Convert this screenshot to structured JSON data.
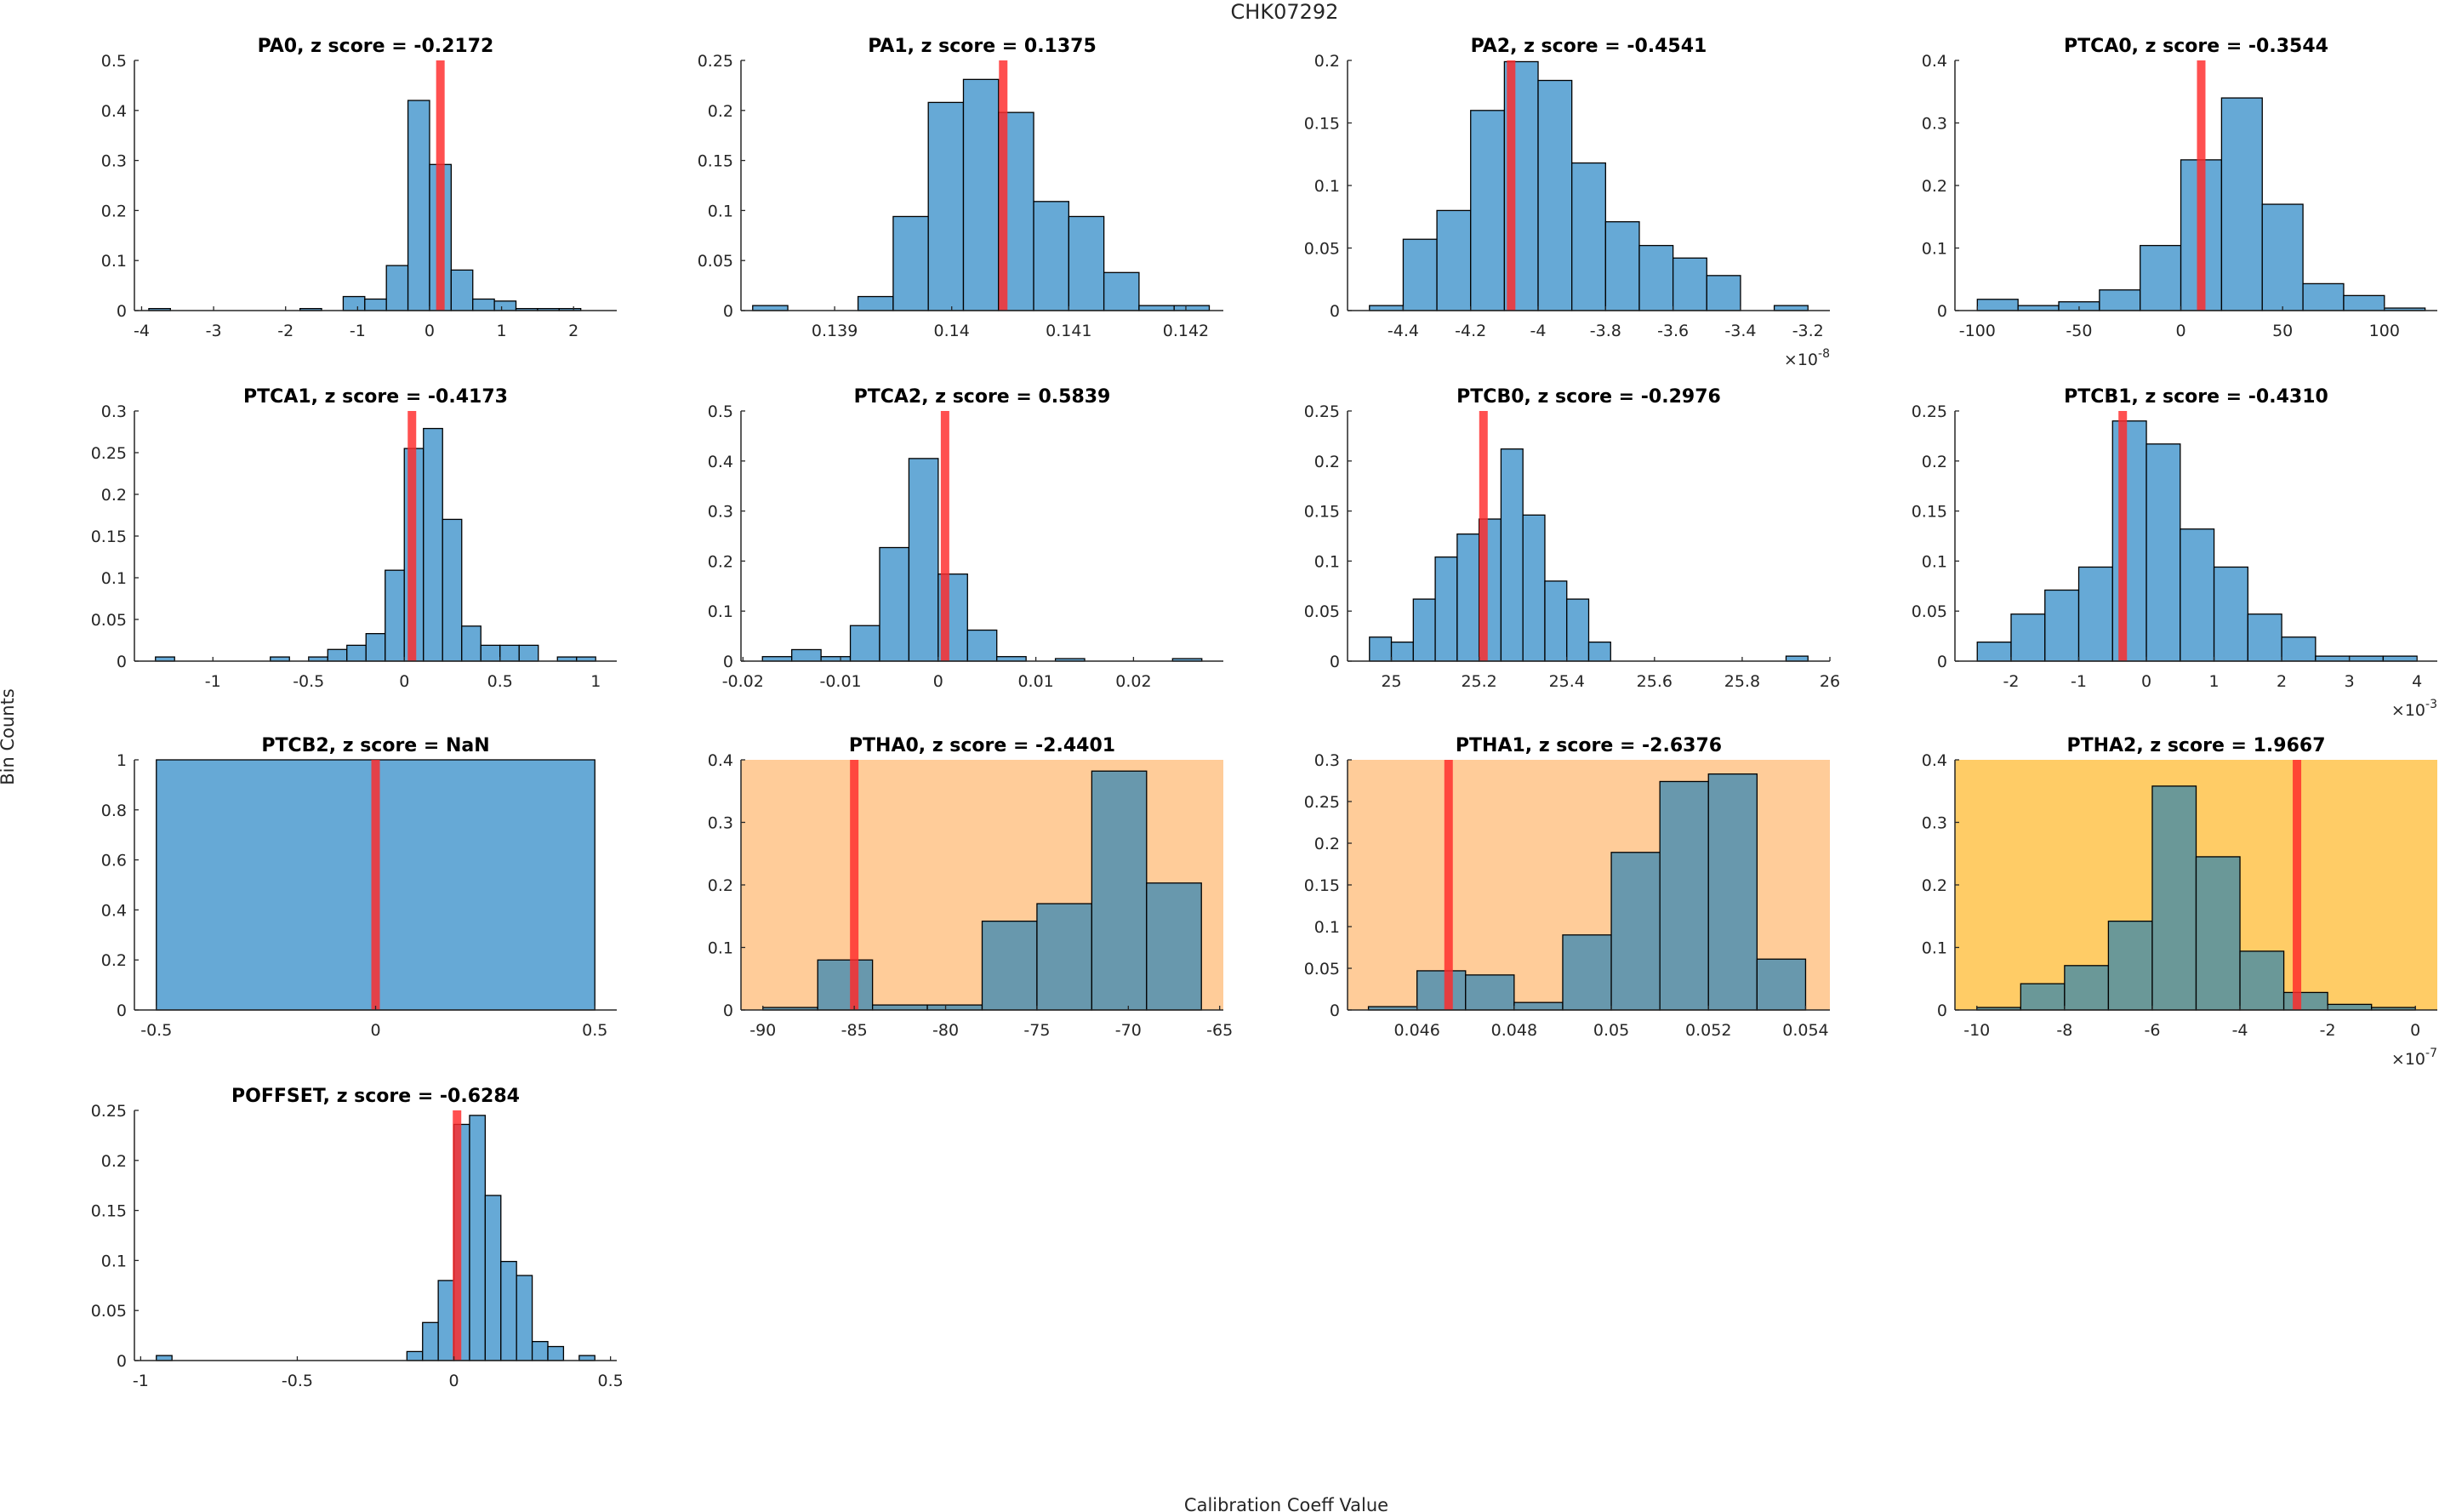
{
  "figure": {
    "suptitle": "CHK07292",
    "xlabel": "Calibration Coeff Value",
    "ylabel": "Bin Counts",
    "colors": {
      "bar": "#66a9d6",
      "bar_on_bg": "#6898ad",
      "bar_on_bg_yellow": "#6a9898",
      "bar_edge": "#000000",
      "marker": "#ff2a2a",
      "bg_warning": "#ffcc99",
      "bg_alert": "#ffcc66"
    }
  },
  "chart_data": [
    {
      "type": "bar",
      "name": "PA0",
      "title": "PA0, z score = -0.2172",
      "z_score": -0.2172,
      "bin_start": -3.9,
      "bin_width": 0.3,
      "values": [
        0.004,
        0,
        0,
        0,
        0,
        0,
        0,
        0.004,
        0,
        0.028,
        0.023,
        0.09,
        0.42,
        0.292,
        0.081,
        0.023,
        0.019,
        0.004,
        0.004,
        0.004
      ],
      "marker_x": 0.15,
      "xlim": [
        -4.1,
        2.6
      ],
      "ylim": [
        0,
        0.5
      ],
      "xticks": [
        -4,
        -3,
        -2,
        -1,
        0,
        1,
        2
      ],
      "xticklabels": [
        "-4",
        "-3",
        "-2",
        "-1",
        "0",
        "1",
        "2"
      ],
      "yticks": [
        0,
        0.1,
        0.2,
        0.3,
        0.4,
        0.5
      ],
      "yticklabels": [
        "0",
        "0.1",
        "0.2",
        "0.3",
        "0.4",
        "0.5"
      ],
      "exponent": "",
      "background": "none"
    },
    {
      "type": "bar",
      "name": "PA1",
      "title": "PA1, z score = 0.1375",
      "z_score": 0.1375,
      "bin_start": 0.1383,
      "bin_width": 0.0003,
      "values": [
        0.005,
        0,
        0,
        0.014,
        0.094,
        0.208,
        0.231,
        0.198,
        0.109,
        0.094,
        0.038,
        0.005,
        0.005
      ],
      "marker_x": 0.14044,
      "xlim": [
        0.1382,
        0.14232
      ],
      "ylim": [
        0,
        0.25
      ],
      "xticks": [
        0.139,
        0.14,
        0.141,
        0.142
      ],
      "xticklabels": [
        "0.139",
        "0.14",
        "0.141",
        "0.142"
      ],
      "yticks": [
        0,
        0.05,
        0.1,
        0.15,
        0.2,
        0.25
      ],
      "yticklabels": [
        "0",
        "0.05",
        "0.1",
        "0.15",
        "0.2",
        "0.25"
      ],
      "exponent": "",
      "background": "none"
    },
    {
      "type": "bar",
      "name": "PA2",
      "title": "PA2, z score = -0.4541",
      "z_score": -0.4541,
      "bin_start": -4.5,
      "bin_width": 0.1,
      "values": [
        0.004,
        0.057,
        0.08,
        0.16,
        0.199,
        0.184,
        0.118,
        0.071,
        0.052,
        0.042,
        0.028,
        0,
        0.004
      ],
      "marker_x": -4.08,
      "xlim": [
        -4.565,
        -3.135
      ],
      "ylim": [
        0,
        0.2
      ],
      "xticks": [
        -4.4,
        -4.2,
        -4,
        -3.8,
        -3.6,
        -3.4,
        -3.2
      ],
      "xticklabels": [
        "-4.4",
        "-4.2",
        "-4",
        "-3.8",
        "-3.6",
        "-3.4",
        "-3.2"
      ],
      "yticks": [
        0,
        0.05,
        0.1,
        0.15,
        0.2
      ],
      "yticklabels": [
        "0",
        "0.05",
        "0.1",
        "0.15",
        "0.2"
      ],
      "exponent": "-8",
      "background": "none"
    },
    {
      "type": "bar",
      "name": "PTCA0",
      "title": "PTCA0, z score = -0.3544",
      "z_score": -0.3544,
      "bin_start": -100,
      "bin_width": 20,
      "values": [
        0.018,
        0.008,
        0.014,
        0.033,
        0.104,
        0.241,
        0.34,
        0.17,
        0.043,
        0.024,
        0.004
      ],
      "marker_x": 10,
      "xlim": [
        -111,
        126
      ],
      "ylim": [
        0,
        0.4
      ],
      "xticks": [
        -100,
        -50,
        0,
        50,
        100
      ],
      "xticklabels": [
        "-100",
        "-50",
        "0",
        "50",
        "100"
      ],
      "yticks": [
        0,
        0.1,
        0.2,
        0.3,
        0.4
      ],
      "yticklabels": [
        "0",
        "0.1",
        "0.2",
        "0.3",
        "0.4"
      ],
      "exponent": "",
      "background": "none"
    },
    {
      "type": "bar",
      "name": "PTCA1",
      "title": "PTCA1, z score = -0.4173",
      "z_score": -0.4173,
      "bin_start": -1.3,
      "bin_width": 0.1,
      "values": [
        0.005,
        0,
        0,
        0,
        0,
        0,
        0.005,
        0,
        0.005,
        0.014,
        0.019,
        0.033,
        0.109,
        0.255,
        0.279,
        0.17,
        0.042,
        0.019,
        0.019,
        0.019,
        0,
        0.005,
        0.005
      ],
      "marker_x": 0.04,
      "xlim": [
        -1.41,
        1.11
      ],
      "ylim": [
        0,
        0.3
      ],
      "xticks": [
        -1,
        -0.5,
        0,
        0.5,
        1
      ],
      "xticklabels": [
        "-1",
        "-0.5",
        "0",
        "0.5",
        "1"
      ],
      "yticks": [
        0,
        0.05,
        0.1,
        0.15,
        0.2,
        0.25,
        0.3
      ],
      "yticklabels": [
        "0",
        "0.05",
        "0.1",
        "0.15",
        "0.2",
        "0.25",
        "0.3"
      ],
      "exponent": "",
      "background": "none"
    },
    {
      "type": "bar",
      "name": "PTCA2",
      "title": "PTCA2, z score = 0.5839",
      "z_score": 0.5839,
      "bin_start": -0.018,
      "bin_width": 0.003,
      "values": [
        0.009,
        0.023,
        0.009,
        0.071,
        0.227,
        0.405,
        0.174,
        0.062,
        0.009,
        0,
        0.005,
        0,
        0,
        0,
        0.005
      ],
      "marker_x": 0.0007,
      "xlim": [
        -0.0202,
        0.0292
      ],
      "ylim": [
        0,
        0.5
      ],
      "xticks": [
        -0.02,
        -0.01,
        0,
        0.01,
        0.02
      ],
      "xticklabels": [
        "-0.02",
        "-0.01",
        "0",
        "0.01",
        "0.02"
      ],
      "yticks": [
        0,
        0.1,
        0.2,
        0.3,
        0.4,
        0.5
      ],
      "yticklabels": [
        "0",
        "0.1",
        "0.2",
        "0.3",
        "0.4",
        "0.5"
      ],
      "exponent": "",
      "background": "none"
    },
    {
      "type": "bar",
      "name": "PTCB0",
      "title": "PTCB0, z score = -0.2976",
      "z_score": -0.2976,
      "bin_start": 24.95,
      "bin_width": 0.05,
      "values": [
        0.024,
        0.019,
        0.062,
        0.104,
        0.127,
        0.142,
        0.212,
        0.146,
        0.08,
        0.062,
        0.019,
        0,
        0,
        0,
        0,
        0,
        0,
        0,
        0,
        0.005
      ],
      "marker_x": 25.21,
      "xlim": [
        24.9,
        26.0
      ],
      "ylim": [
        0,
        0.25
      ],
      "xticks": [
        25,
        25.2,
        25.4,
        25.6,
        25.8,
        26
      ],
      "xticklabels": [
        "25",
        "25.2",
        "25.4",
        "25.6",
        "25.8",
        "26"
      ],
      "yticks": [
        0,
        0.05,
        0.1,
        0.15,
        0.2,
        0.25
      ],
      "yticklabels": [
        "0",
        "0.05",
        "0.1",
        "0.15",
        "0.2",
        "0.25"
      ],
      "exponent": "",
      "background": "none"
    },
    {
      "type": "bar",
      "name": "PTCB1",
      "title": "PTCB1, z score = -0.4310",
      "z_score": -0.431,
      "bin_start": -2.5,
      "bin_width": 0.5,
      "values": [
        0.019,
        0.047,
        0.071,
        0.094,
        0.24,
        0.217,
        0.132,
        0.094,
        0.047,
        0.024,
        0.005,
        0.005,
        0.005
      ],
      "marker_x": -0.35,
      "xlim": [
        -2.83,
        4.3
      ],
      "ylim": [
        0,
        0.25
      ],
      "xticks": [
        -2,
        -1,
        0,
        1,
        2,
        3,
        4
      ],
      "xticklabels": [
        "-2",
        "-1",
        "0",
        "1",
        "2",
        "3",
        "4"
      ],
      "yticks": [
        0,
        0.05,
        0.1,
        0.15,
        0.2,
        0.25
      ],
      "yticklabels": [
        "0",
        "0.05",
        "0.1",
        "0.15",
        "0.2",
        "0.25"
      ],
      "exponent": "-3",
      "background": "none"
    },
    {
      "type": "bar",
      "name": "PTCB2",
      "title": "PTCB2, z score = NaN",
      "z_score": null,
      "bin_start": -0.5,
      "bin_width": 1.0,
      "values": [
        1.0
      ],
      "marker_x": 0,
      "xlim": [
        -0.55,
        0.55
      ],
      "ylim": [
        0,
        1
      ],
      "xticks": [
        -0.5,
        0,
        0.5
      ],
      "xticklabels": [
        "-0.5",
        "0",
        "0.5"
      ],
      "yticks": [
        0,
        0.2,
        0.4,
        0.6,
        0.8,
        1
      ],
      "yticklabels": [
        "0",
        "0.2",
        "0.4",
        "0.6",
        "0.8",
        "1"
      ],
      "exponent": "",
      "background": "none"
    },
    {
      "type": "bar",
      "name": "PTHA0",
      "title": "PTHA0, z score = -2.4401",
      "z_score": -2.4401,
      "bin_start": -90,
      "bin_width": 3,
      "values": [
        0.004,
        0.08,
        0.008,
        0.008,
        0.142,
        0.17,
        0.382,
        0.203
      ],
      "marker_x": -85,
      "xlim": [
        -91.2,
        -64.8
      ],
      "ylim": [
        0,
        0.4
      ],
      "xticks": [
        -90,
        -85,
        -80,
        -75,
        -70,
        -65
      ],
      "xticklabels": [
        "-90",
        "-85",
        "-80",
        "-75",
        "-70",
        "-65"
      ],
      "yticks": [
        0,
        0.1,
        0.2,
        0.3,
        0.4
      ],
      "yticklabels": [
        "0",
        "0.1",
        "0.2",
        "0.3",
        "0.4"
      ],
      "exponent": "",
      "background": "warning"
    },
    {
      "type": "bar",
      "name": "PTHA1",
      "title": "PTHA1, z score = -2.6376",
      "z_score": -2.6376,
      "bin_start": 0.045,
      "bin_width": 0.001,
      "values": [
        0.004,
        0.047,
        0.042,
        0.009,
        0.09,
        0.189,
        0.274,
        0.283,
        0.061
      ],
      "marker_x": 0.04665,
      "xlim": [
        0.04457,
        0.0545
      ],
      "ylim": [
        0,
        0.3
      ],
      "xticks": [
        0.046,
        0.048,
        0.05,
        0.052,
        0.054
      ],
      "xticklabels": [
        "0.046",
        "0.048",
        "0.05",
        "0.052",
        "0.054"
      ],
      "yticks": [
        0,
        0.05,
        0.1,
        0.15,
        0.2,
        0.25,
        0.3
      ],
      "yticklabels": [
        "0",
        "0.05",
        "0.1",
        "0.15",
        "0.2",
        "0.25",
        "0.3"
      ],
      "exponent": "",
      "background": "warning"
    },
    {
      "type": "bar",
      "name": "PTHA2",
      "title": "PTHA2, z score = 1.9667",
      "z_score": 1.9667,
      "bin_start": -10,
      "bin_width": 1,
      "values": [
        0.004,
        0.042,
        0.071,
        0.142,
        0.358,
        0.245,
        0.094,
        0.028,
        0.009,
        0.004
      ],
      "marker_x": -2.7,
      "xlim": [
        -10.5,
        0.5
      ],
      "ylim": [
        0,
        0.4
      ],
      "xticks": [
        -10,
        -8,
        -6,
        -4,
        -2,
        0
      ],
      "xticklabels": [
        "-10",
        "-8",
        "-6",
        "-4",
        "-2",
        "0"
      ],
      "yticks": [
        0,
        0.1,
        0.2,
        0.3,
        0.4
      ],
      "yticklabels": [
        "0",
        "0.1",
        "0.2",
        "0.3",
        "0.4"
      ],
      "exponent": "-7",
      "background": "alert"
    },
    {
      "type": "bar",
      "name": "POFFSET",
      "title": "POFFSET, z score = -0.6284",
      "z_score": -0.6284,
      "bin_start": -0.95,
      "bin_width": 0.05,
      "values": [
        0.005,
        0,
        0,
        0,
        0,
        0,
        0,
        0,
        0,
        0,
        0,
        0,
        0,
        0,
        0,
        0,
        0.009,
        0.038,
        0.08,
        0.236,
        0.245,
        0.165,
        0.099,
        0.085,
        0.019,
        0.014,
        0,
        0.005
      ],
      "marker_x": 0.01,
      "xlim": [
        -1.02,
        0.52
      ],
      "ylim": [
        0,
        0.25
      ],
      "xticks": [
        -1,
        -0.5,
        0,
        0.5
      ],
      "xticklabels": [
        "-1",
        "-0.5",
        "0",
        "0.5"
      ],
      "yticks": [
        0,
        0.05,
        0.1,
        0.15,
        0.2,
        0.25
      ],
      "yticklabels": [
        "0",
        "0.05",
        "0.1",
        "0.15",
        "0.2",
        "0.25"
      ],
      "exponent": "",
      "background": "none"
    }
  ]
}
